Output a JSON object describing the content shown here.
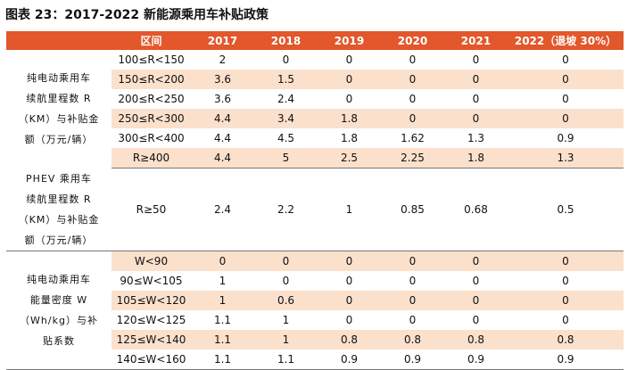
{
  "title": "图表 23：2017-2022 新能源乘用车补贴政策",
  "header": [
    "",
    "区间",
    "2017",
    "2018",
    "2019",
    "2020",
    "2021",
    "2022（退坡 30%）"
  ],
  "groups": [
    {
      "category_lines": [
        "纯电动乘用车",
        "续航里程数 R",
        "（KM）与补贴金",
        "额（万元/辆）"
      ],
      "rows": [
        {
          "range": "100≤R<150",
          "values": [
            "2",
            "0",
            "0",
            "0",
            "0",
            "0"
          ]
        },
        {
          "range": "150≤R<200",
          "values": [
            "3.6",
            "1.5",
            "0",
            "0",
            "0",
            "0"
          ]
        },
        {
          "range": "200≤R<250",
          "values": [
            "3.6",
            "2.4",
            "0",
            "0",
            "0",
            "0"
          ]
        },
        {
          "range": "250≤R<300",
          "values": [
            "4.4",
            "3.4",
            "1.8",
            "0",
            "0",
            "0"
          ]
        },
        {
          "range": "300≤R<400",
          "values": [
            "4.4",
            "4.5",
            "1.8",
            "1.62",
            "1.3",
            "0.9"
          ]
        },
        {
          "range": "R≥400",
          "values": [
            "4.4",
            "5",
            "2.5",
            "2.25",
            "1.8",
            "1.3"
          ]
        }
      ]
    },
    {
      "category_lines": [
        "PHEV 乘用车",
        "续航里程数 R",
        "（KM）与补贴金",
        "额（万元/辆）"
      ],
      "rows": [
        {
          "range": "R≥50",
          "values": [
            "2.4",
            "2.2",
            "1",
            "0.85",
            "0.68",
            "0.5"
          ]
        }
      ]
    },
    {
      "category_lines": [
        "纯电动乘用车",
        "能量密度 W",
        "（Wh/kg）与补",
        "贴系数"
      ],
      "rows": [
        {
          "range": "W<90",
          "values": [
            "0",
            "0",
            "0",
            "0",
            "0",
            "0"
          ]
        },
        {
          "range": "90≤W<105",
          "values": [
            "1",
            "0",
            "0",
            "0",
            "0",
            "0"
          ]
        },
        {
          "range": "105≤W<120",
          "values": [
            "1",
            "0.6",
            "0",
            "0",
            "0",
            "0"
          ]
        },
        {
          "range": "120≤W<125",
          "values": [
            "1.1",
            "1",
            "0",
            "0",
            "0",
            "0"
          ]
        },
        {
          "range": "125≤W<140",
          "values": [
            "1.1",
            "1",
            "0.8",
            "0.8",
            "0.8",
            "0.8"
          ]
        },
        {
          "range": "140≤W<160",
          "values": [
            "1.1",
            "1.1",
            "0.9",
            "0.9",
            "0.9",
            "0.9"
          ]
        }
      ]
    }
  ],
  "colors": {
    "header_bg": "#e2572b",
    "header_text": "#ffffff",
    "alt_row_bg": "#fbe0cc"
  }
}
